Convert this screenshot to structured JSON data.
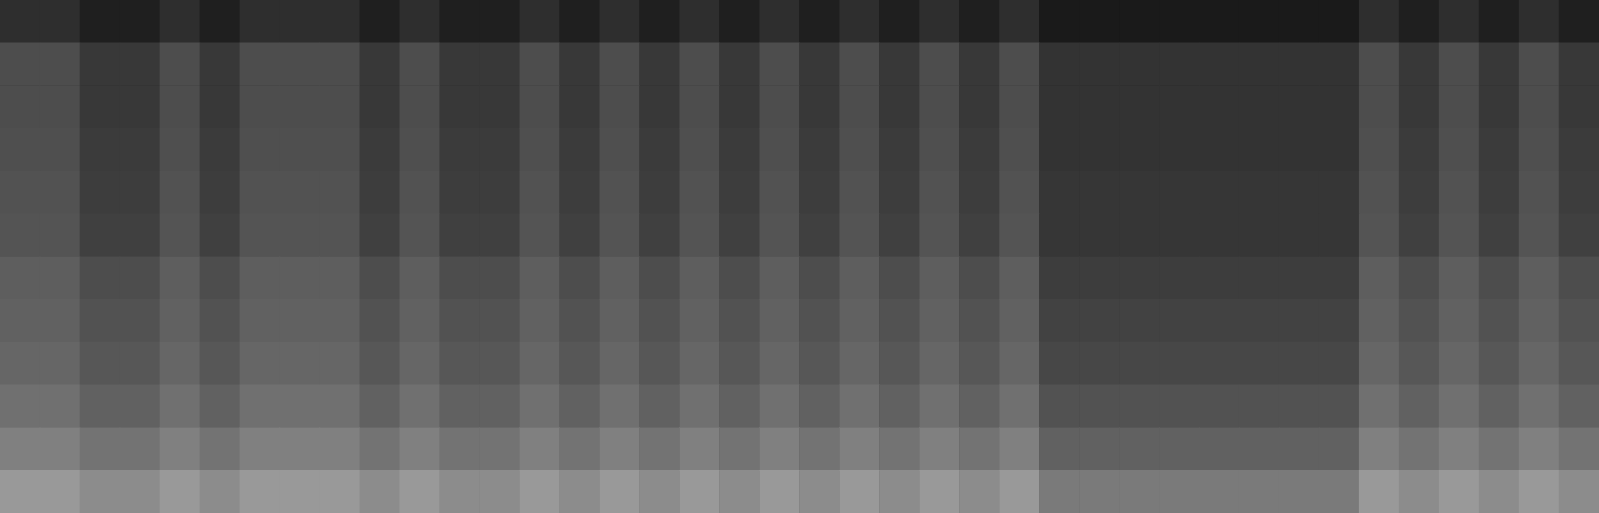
{
  "chart_data": {
    "type": "heatmap",
    "tick_labels": false,
    "grid": false,
    "zlim": [
      0,
      100
    ],
    "cells": [
      [
        18,
        18,
        12,
        12,
        18,
        12,
        18,
        18,
        18,
        12,
        18,
        12,
        12,
        18,
        12,
        18,
        12,
        18,
        12,
        18,
        12,
        18,
        12,
        18,
        12,
        18,
        10,
        10,
        10,
        10,
        10,
        10,
        10,
        10,
        18,
        12,
        18,
        12,
        18,
        12
      ],
      [
        30,
        30,
        22,
        22,
        30,
        22,
        30,
        30,
        30,
        22,
        30,
        22,
        22,
        30,
        22,
        30,
        22,
        30,
        22,
        30,
        22,
        30,
        22,
        30,
        22,
        30,
        20,
        20,
        20,
        20,
        20,
        20,
        20,
        20,
        30,
        22,
        30,
        22,
        30,
        22
      ],
      [
        30,
        30,
        22,
        22,
        30,
        22,
        30,
        30,
        30,
        22,
        30,
        22,
        22,
        30,
        22,
        30,
        22,
        30,
        22,
        30,
        22,
        30,
        22,
        30,
        22,
        30,
        20,
        20,
        20,
        20,
        20,
        20,
        20,
        20,
        30,
        22,
        30,
        22,
        30,
        22
      ],
      [
        31,
        31,
        23,
        23,
        31,
        23,
        31,
        31,
        31,
        23,
        31,
        23,
        23,
        31,
        23,
        31,
        23,
        31,
        23,
        31,
        23,
        31,
        23,
        31,
        23,
        31,
        20,
        20,
        20,
        20,
        20,
        20,
        20,
        20,
        31,
        23,
        31,
        23,
        31,
        23
      ],
      [
        32,
        32,
        24,
        24,
        32,
        24,
        32,
        32,
        32,
        24,
        32,
        24,
        24,
        32,
        24,
        32,
        24,
        32,
        24,
        32,
        24,
        32,
        24,
        32,
        24,
        32,
        21,
        21,
        21,
        21,
        21,
        21,
        21,
        21,
        32,
        24,
        32,
        24,
        32,
        24
      ],
      [
        33,
        33,
        25,
        25,
        33,
        25,
        33,
        33,
        33,
        25,
        33,
        25,
        25,
        33,
        25,
        33,
        25,
        33,
        25,
        33,
        25,
        33,
        25,
        33,
        25,
        33,
        21,
        21,
        21,
        21,
        21,
        21,
        21,
        21,
        33,
        25,
        33,
        25,
        33,
        25
      ],
      [
        37,
        37,
        30,
        30,
        37,
        30,
        37,
        37,
        37,
        30,
        37,
        30,
        30,
        37,
        30,
        37,
        30,
        37,
        30,
        37,
        30,
        37,
        30,
        37,
        30,
        37,
        24,
        24,
        24,
        24,
        24,
        24,
        24,
        24,
        37,
        30,
        37,
        30,
        37,
        30
      ],
      [
        38,
        38,
        32,
        32,
        38,
        32,
        38,
        38,
        38,
        32,
        38,
        32,
        32,
        38,
        32,
        38,
        32,
        38,
        32,
        38,
        32,
        38,
        32,
        38,
        32,
        38,
        26,
        26,
        26,
        26,
        26,
        26,
        26,
        26,
        38,
        32,
        38,
        32,
        38,
        32
      ],
      [
        40,
        40,
        34,
        34,
        40,
        34,
        40,
        40,
        40,
        34,
        40,
        34,
        34,
        40,
        34,
        40,
        34,
        40,
        34,
        40,
        34,
        40,
        34,
        40,
        34,
        40,
        28,
        28,
        28,
        28,
        28,
        28,
        28,
        28,
        40,
        34,
        40,
        34,
        40,
        34
      ],
      [
        44,
        44,
        38,
        38,
        44,
        38,
        44,
        44,
        44,
        38,
        44,
        38,
        38,
        44,
        38,
        44,
        38,
        44,
        38,
        44,
        38,
        44,
        38,
        44,
        38,
        44,
        32,
        32,
        32,
        32,
        32,
        32,
        32,
        32,
        44,
        38,
        44,
        38,
        44,
        38
      ],
      [
        50,
        50,
        45,
        45,
        50,
        45,
        50,
        50,
        50,
        45,
        50,
        45,
        45,
        50,
        45,
        50,
        45,
        50,
        45,
        50,
        45,
        50,
        45,
        50,
        45,
        50,
        38,
        38,
        38,
        38,
        38,
        38,
        38,
        38,
        50,
        45,
        50,
        45,
        50,
        45
      ],
      [
        60,
        60,
        55,
        55,
        60,
        55,
        60,
        60,
        60,
        55,
        60,
        55,
        55,
        60,
        55,
        60,
        55,
        60,
        55,
        60,
        55,
        60,
        55,
        60,
        55,
        60,
        48,
        48,
        48,
        48,
        48,
        48,
        48,
        48,
        60,
        55,
        60,
        55,
        60,
        55
      ]
    ]
  }
}
